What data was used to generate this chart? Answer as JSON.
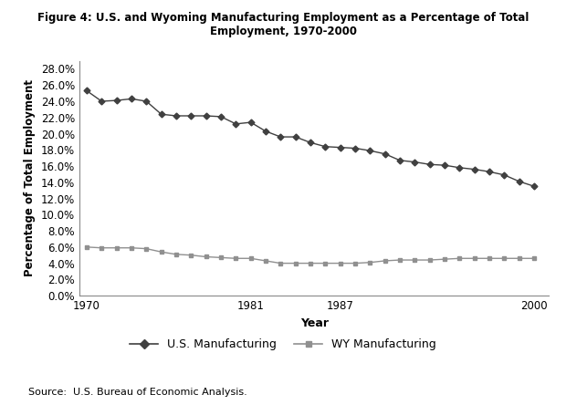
{
  "title": "Figure 4: U.S. and Wyoming Manufacturing Employment as a Percentage of Total\nEmployment, 1970-2000",
  "xlabel": "Year",
  "ylabel": "Percentage of Total Employment",
  "source": "Source:  U.S. Bureau of Economic Analysis.",
  "years": [
    1970,
    1971,
    1972,
    1973,
    1974,
    1975,
    1976,
    1977,
    1978,
    1979,
    1980,
    1981,
    1982,
    1983,
    1984,
    1985,
    1986,
    1987,
    1988,
    1989,
    1990,
    1991,
    1992,
    1993,
    1994,
    1995,
    1996,
    1997,
    1998,
    1999,
    2000
  ],
  "us_manufacturing": [
    0.253,
    0.24,
    0.241,
    0.243,
    0.24,
    0.224,
    0.222,
    0.222,
    0.222,
    0.221,
    0.212,
    0.214,
    0.203,
    0.196,
    0.196,
    0.189,
    0.184,
    0.183,
    0.182,
    0.179,
    0.175,
    0.167,
    0.165,
    0.162,
    0.161,
    0.158,
    0.156,
    0.153,
    0.149,
    0.141,
    0.135
  ],
  "wy_manufacturing": [
    0.06,
    0.059,
    0.059,
    0.059,
    0.058,
    0.054,
    0.051,
    0.05,
    0.048,
    0.047,
    0.046,
    0.046,
    0.043,
    0.04,
    0.04,
    0.04,
    0.04,
    0.04,
    0.04,
    0.041,
    0.043,
    0.044,
    0.044,
    0.044,
    0.045,
    0.046,
    0.046,
    0.046,
    0.046,
    0.046,
    0.046
  ],
  "us_color": "#404040",
  "wy_color": "#909090",
  "ylim": [
    0.0,
    0.29
  ],
  "yticks": [
    0.0,
    0.02,
    0.04,
    0.06,
    0.08,
    0.1,
    0.12,
    0.14,
    0.16,
    0.18,
    0.2,
    0.22,
    0.24,
    0.26,
    0.28
  ],
  "xtick_labels": [
    "1970",
    "1981",
    "1987",
    "2000"
  ],
  "xtick_positions": [
    1970,
    1981,
    1987,
    2000
  ],
  "legend_us": "U.S. Manufacturing",
  "legend_wy": "WY Manufacturing",
  "bg_color": "#ffffff"
}
